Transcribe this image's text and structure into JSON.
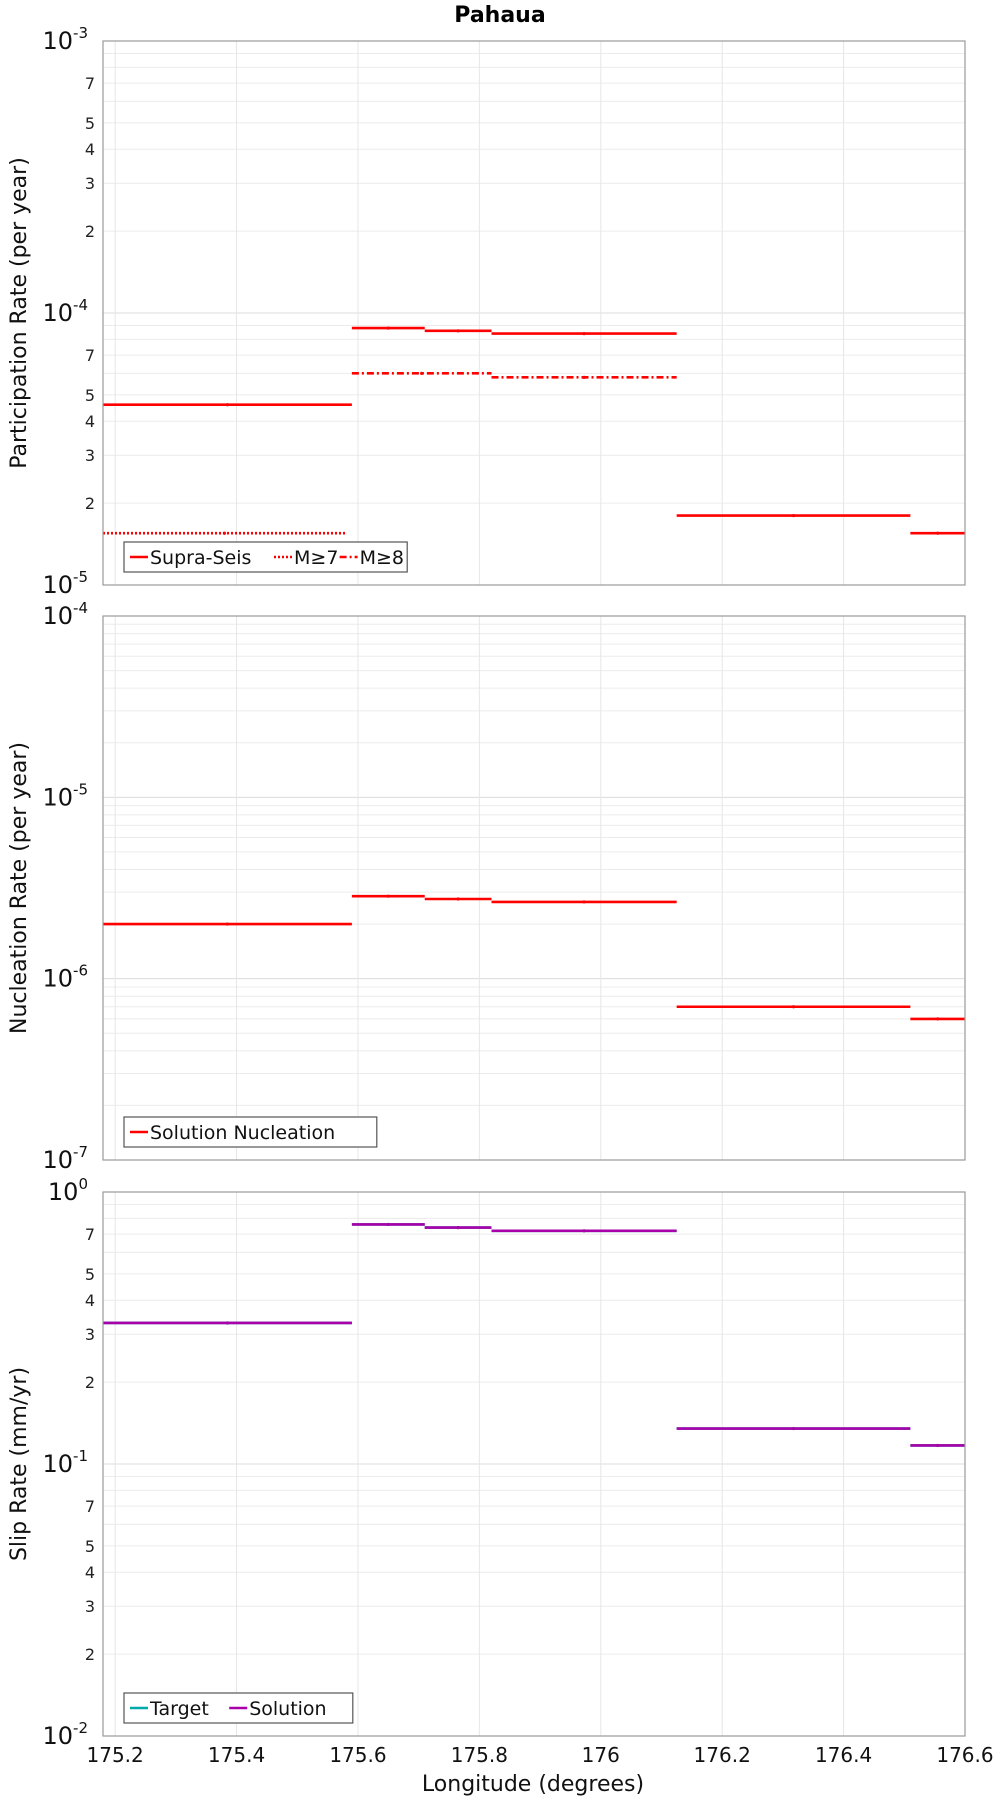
{
  "title": "Pahaua",
  "xlabel": "Longitude (degrees)",
  "x_ticks": [
    "175.2",
    "175.4",
    "175.6",
    "175.8",
    "176",
    "176.2",
    "176.4",
    "176.6"
  ],
  "x_range": [
    175.18,
    176.6
  ],
  "chart_data": [
    {
      "type": "line",
      "ylabel": "Participation Rate (per year)",
      "yscale": "log",
      "ylim": [
        1e-05,
        0.001
      ],
      "grid": true,
      "legend_position": "bottom-left",
      "decade_labels": [
        {
          "base": "10",
          "exp": "-3",
          "value": 0.001
        },
        {
          "base": "10",
          "exp": "-4",
          "value": 0.0001
        },
        {
          "base": "10",
          "exp": "-5",
          "value": 1e-05
        }
      ],
      "minor_labels": [
        {
          "label": "7",
          "value": 0.0007
        },
        {
          "label": "5",
          "value": 0.0005
        },
        {
          "label": "4",
          "value": 0.0004
        },
        {
          "label": "3",
          "value": 0.0003
        },
        {
          "label": "2",
          "value": 0.0002
        },
        {
          "label": "7",
          "value": 7e-05
        },
        {
          "label": "5",
          "value": 5e-05
        },
        {
          "label": "4",
          "value": 4e-05
        },
        {
          "label": "3",
          "value": 3e-05
        },
        {
          "label": "2",
          "value": 2e-05
        }
      ],
      "series": [
        {
          "name": "Supra-Seis",
          "color": "#ff0000",
          "style": "solid",
          "segments": [
            {
              "x": [
                175.18,
                175.59
              ],
              "y": 4.6e-05
            },
            {
              "x": [
                175.59,
                175.71
              ],
              "y": 8.8e-05
            },
            {
              "x": [
                175.71,
                175.82
              ],
              "y": 8.6e-05
            },
            {
              "x": [
                175.82,
                176.125
              ],
              "y": 8.4e-05
            },
            {
              "x": [
                176.125,
                176.51
              ],
              "y": 1.8e-05
            },
            {
              "x": [
                176.51,
                176.6
              ],
              "y": 1.55e-05
            }
          ]
        },
        {
          "name": "M≥7",
          "color": "#ff0000",
          "style": "dotted",
          "segments": [
            {
              "x": [
                175.18,
                175.58
              ],
              "y": 1.55e-05
            }
          ]
        },
        {
          "name": "M≥8",
          "color": "#ff0000",
          "style": "dashdot",
          "segments": [
            {
              "x": [
                175.59,
                175.82
              ],
              "y": 6e-05
            },
            {
              "x": [
                175.82,
                176.125
              ],
              "y": 5.8e-05
            }
          ]
        }
      ]
    },
    {
      "type": "line",
      "ylabel": "Nucleation Rate (per year)",
      "yscale": "log",
      "ylim": [
        1e-07,
        0.0001
      ],
      "grid": true,
      "legend_position": "bottom-left",
      "decade_labels": [
        {
          "base": "10",
          "exp": "-4",
          "value": 0.0001
        },
        {
          "base": "10",
          "exp": "-5",
          "value": 1e-05
        },
        {
          "base": "10",
          "exp": "-6",
          "value": 1e-06
        },
        {
          "base": "10",
          "exp": "-7",
          "value": 1e-07
        }
      ],
      "minor_labels": [],
      "series": [
        {
          "name": "Solution Nucleation",
          "color": "#ff0000",
          "style": "solid",
          "segments": [
            {
              "x": [
                175.18,
                175.59
              ],
              "y": 2e-06
            },
            {
              "x": [
                175.59,
                175.71
              ],
              "y": 2.85e-06
            },
            {
              "x": [
                175.71,
                175.82
              ],
              "y": 2.75e-06
            },
            {
              "x": [
                175.82,
                176.125
              ],
              "y": 2.65e-06
            },
            {
              "x": [
                176.125,
                176.51
              ],
              "y": 7e-07
            },
            {
              "x": [
                176.51,
                176.6
              ],
              "y": 6e-07
            }
          ]
        }
      ]
    },
    {
      "type": "line",
      "ylabel": "Slip Rate (mm/yr)",
      "yscale": "log",
      "ylim": [
        0.01,
        1
      ],
      "grid": true,
      "legend_position": "bottom-left",
      "decade_labels": [
        {
          "base": "10",
          "exp": "0",
          "value": 1
        },
        {
          "base": "10",
          "exp": "-1",
          "value": 0.1
        },
        {
          "base": "10",
          "exp": "-2",
          "value": 0.01
        }
      ],
      "minor_labels": [
        {
          "label": "7",
          "value": 0.7
        },
        {
          "label": "5",
          "value": 0.5
        },
        {
          "label": "4",
          "value": 0.4
        },
        {
          "label": "3",
          "value": 0.3
        },
        {
          "label": "2",
          "value": 0.2
        },
        {
          "label": "7",
          "value": 0.07
        },
        {
          "label": "5",
          "value": 0.05
        },
        {
          "label": "4",
          "value": 0.04
        },
        {
          "label": "3",
          "value": 0.03
        },
        {
          "label": "2",
          "value": 0.02
        }
      ],
      "series": [
        {
          "name": "Target",
          "color": "#00aaaa",
          "style": "solid",
          "segments": [
            {
              "x": [
                175.18,
                175.59
              ],
              "y": 0.33
            },
            {
              "x": [
                175.59,
                175.71
              ],
              "y": 0.76
            },
            {
              "x": [
                175.71,
                175.82
              ],
              "y": 0.74
            },
            {
              "x": [
                175.82,
                176.125
              ],
              "y": 0.72
            },
            {
              "x": [
                176.125,
                176.51
              ],
              "y": 0.135
            },
            {
              "x": [
                176.51,
                176.6
              ],
              "y": 0.117
            }
          ]
        },
        {
          "name": "Solution",
          "color": "#aa00aa",
          "style": "solid",
          "segments": [
            {
              "x": [
                175.18,
                175.59
              ],
              "y": 0.33
            },
            {
              "x": [
                175.59,
                175.71
              ],
              "y": 0.76
            },
            {
              "x": [
                175.71,
                175.82
              ],
              "y": 0.74
            },
            {
              "x": [
                175.82,
                176.125
              ],
              "y": 0.72
            },
            {
              "x": [
                176.125,
                176.51
              ],
              "y": 0.135
            },
            {
              "x": [
                176.51,
                176.6
              ],
              "y": 0.117
            }
          ]
        }
      ]
    }
  ]
}
